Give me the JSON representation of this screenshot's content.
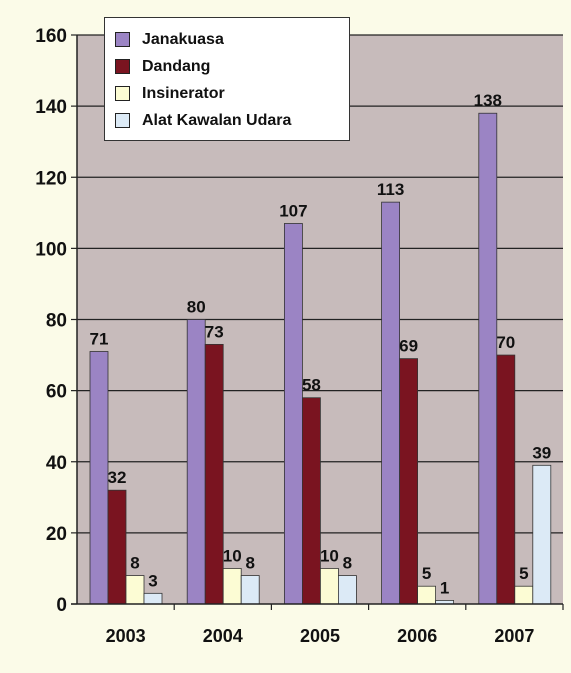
{
  "chart_data": {
    "type": "bar",
    "categories": [
      "2003",
      "2004",
      "2005",
      "2006",
      "2007"
    ],
    "series": [
      {
        "name": "Janakuasa",
        "values": [
          71,
          80,
          107,
          113,
          138
        ],
        "color": "#9b84c4"
      },
      {
        "name": "Dandang",
        "values": [
          32,
          73,
          58,
          69,
          70
        ],
        "color": "#7a1420"
      },
      {
        "name": "Insinerator",
        "values": [
          8,
          10,
          10,
          5,
          5
        ],
        "color": "#fcfcd4"
      },
      {
        "name": "Alat Kawalan Udara",
        "values": [
          3,
          8,
          8,
          1,
          39
        ],
        "color": "#dceaf6"
      }
    ],
    "yticks": [
      0,
      20,
      40,
      60,
      80,
      100,
      120,
      140,
      160
    ],
    "ylim": [
      0,
      160
    ],
    "legend_position": "top-left",
    "plot_background": "#c7bbbb",
    "grid": true
  }
}
